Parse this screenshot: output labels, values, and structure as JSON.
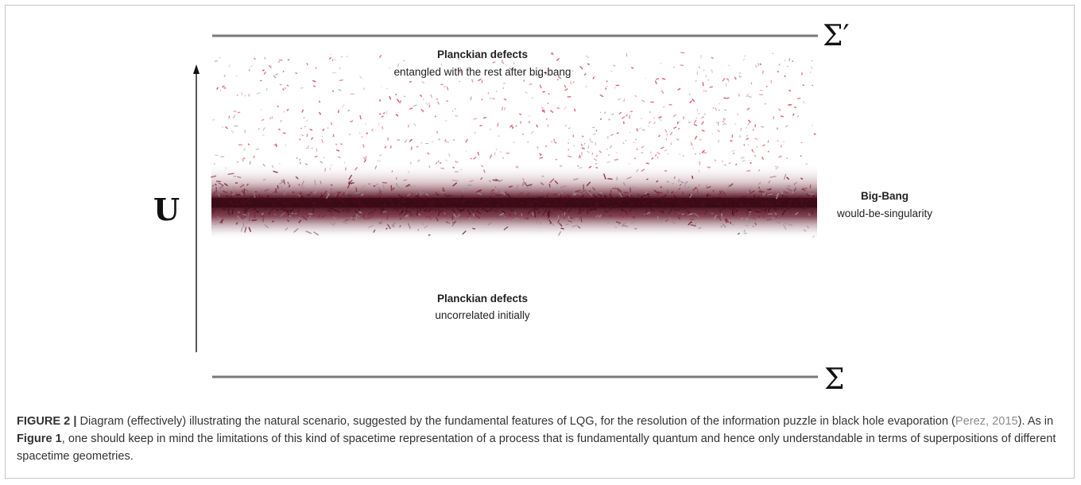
{
  "diagram": {
    "upper_surface_label": "Σ′",
    "lower_surface_label": "Σ",
    "axis_label": "U",
    "top_region": {
      "title": "Planckian defects",
      "subtitle": "entangled with the rest after big-bang"
    },
    "middle_region": {
      "title": "Big-Bang",
      "subtitle": "would-be-singularity"
    },
    "bottom_region": {
      "title": "Planckian defects",
      "subtitle": "uncorrelated initially"
    },
    "colors": {
      "defect_red": "#d9435a",
      "band_dark": "#4a0f1e",
      "band_mid": "#7a2a3c",
      "line_gray": "#7a7a7a"
    }
  },
  "caption": {
    "label": "FIGURE 2 |",
    "text_1": " Diagram (effectively) illustrating the natural scenario, suggested by the fundamental features of LQG, for the resolution of the information puzzle in black hole evaporation (",
    "reference": "Perez, 2015",
    "text_2": "). As in ",
    "figure_ref": "Figure 1",
    "text_3": ", one should keep in mind the limitations of this kind of spacetime representation of a process that is fundamentally quantum and hence only understandable in terms of superpositions of different spacetime geometries."
  }
}
